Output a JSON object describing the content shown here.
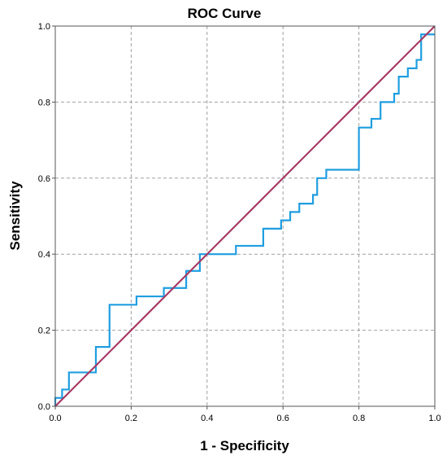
{
  "chart_data": {
    "type": "line",
    "title": "ROC Curve",
    "xlabel": "1 - Specificity",
    "ylabel": "Sensitivity",
    "xlim": [
      0,
      1
    ],
    "ylim": [
      0,
      1
    ],
    "grid": true,
    "x_ticks": [
      "0.0",
      "0.2",
      "0.4",
      "0.6",
      "0.8",
      "1.0"
    ],
    "y_ticks": [
      "0.0",
      "0.2",
      "0.4",
      "0.6",
      "0.8",
      "1.0"
    ],
    "series": [
      {
        "color": "#1f9ee0",
        "x": [
          0.0,
          0.0,
          0.018,
          0.018,
          0.036,
          0.036,
          0.107,
          0.107,
          0.143,
          0.143,
          0.214,
          0.214,
          0.286,
          0.286,
          0.345,
          0.345,
          0.381,
          0.381,
          0.476,
          0.476,
          0.548,
          0.548,
          0.595,
          0.595,
          0.619,
          0.619,
          0.643,
          0.643,
          0.679,
          0.679,
          0.69,
          0.69,
          0.714,
          0.714,
          0.8,
          0.8,
          0.833,
          0.833,
          0.857,
          0.857,
          0.893,
          0.893,
          0.905,
          0.905,
          0.929,
          0.929,
          0.952,
          0.952,
          0.964,
          0.964,
          1.0
        ],
        "y": [
          0.0,
          0.022,
          0.022,
          0.044,
          0.044,
          0.089,
          0.089,
          0.156,
          0.156,
          0.267,
          0.267,
          0.289,
          0.289,
          0.311,
          0.311,
          0.356,
          0.356,
          0.4,
          0.4,
          0.422,
          0.422,
          0.467,
          0.467,
          0.489,
          0.489,
          0.511,
          0.511,
          0.533,
          0.533,
          0.556,
          0.556,
          0.6,
          0.6,
          0.622,
          0.622,
          0.733,
          0.733,
          0.756,
          0.756,
          0.8,
          0.8,
          0.822,
          0.822,
          0.867,
          0.867,
          0.889,
          0.889,
          0.911,
          0.911,
          0.978,
          0.978
        ]
      },
      {
        "color": "#a63a64",
        "x": [
          0,
          1
        ],
        "y": [
          0,
          1
        ]
      }
    ]
  }
}
